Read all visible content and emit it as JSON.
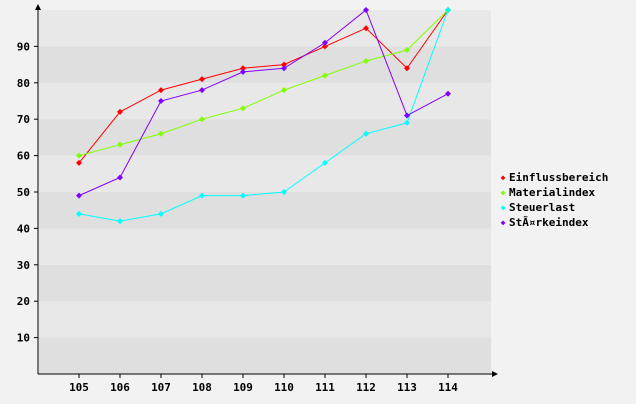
{
  "chart_data": {
    "type": "line",
    "title": "",
    "xlabel": "",
    "ylabel": "",
    "x": [
      "105",
      "106",
      "107",
      "108",
      "109",
      "110",
      "111",
      "112",
      "113",
      "114"
    ],
    "y_ticks": [
      10,
      20,
      30,
      40,
      50,
      60,
      70,
      80,
      90
    ],
    "ylim": [
      0,
      100
    ],
    "grid": "horizontal alternating bands",
    "legend": "right",
    "series": [
      {
        "name": "Einflussbereich",
        "color": "#ff0000",
        "values": [
          58,
          72,
          78,
          81,
          84,
          85,
          90,
          95,
          84,
          100
        ]
      },
      {
        "name": "Materialindex",
        "color": "#80ff00",
        "values": [
          60,
          63,
          66,
          70,
          73,
          78,
          82,
          86,
          89,
          100
        ]
      },
      {
        "name": "Steuerlast",
        "color": "#00ffff",
        "values": [
          44,
          42,
          44,
          49,
          49,
          50,
          58,
          66,
          69,
          100
        ]
      },
      {
        "name": "StÃ¤rkeindex",
        "color": "#8000ff",
        "values": [
          49,
          54,
          75,
          78,
          83,
          84,
          91,
          100,
          71,
          77
        ]
      }
    ]
  }
}
